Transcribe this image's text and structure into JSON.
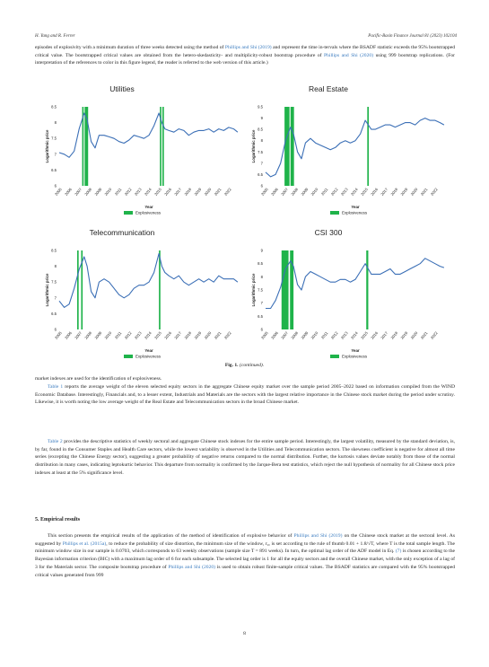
{
  "header": {
    "left": "H. Yang and R. Ferrer",
    "right": "Pacific-Basin Finance Journal 81 (2023) 102104"
  },
  "intro": {
    "t1": "episodes of explosivity with a minimum duration of three weeks detected using the method of ",
    "l1": "Phillips and Shi (2019)",
    "t2": " and represent the time in-tervals where the BSADF statistic exceeds the 95% bootstrapped critical value. The bootstrapped critical values are obtained from the hetero-skedasticity- and multiplicity-robust bootstrap procedure of ",
    "l2": "Phillips and Shi (2020)",
    "t3": " using 999 bootstrap replications. (For interpretation of the references to color in this figure legend, the reader is referred to the web version of this article.)"
  },
  "common": {
    "ylabel": "Logarithmic price",
    "xlabel": "Year",
    "legend": "Explosiveness",
    "years": [
      "2005",
      "2006",
      "2007",
      "2008",
      "2009",
      "2010",
      "2011",
      "2012",
      "2013",
      "2014",
      "2015",
      "2016",
      "2017",
      "2018",
      "2019",
      "2020",
      "2021",
      "2022"
    ],
    "line_color": "#3b6fb6",
    "explosive_color": "#1fb34a"
  },
  "chart_data": [
    {
      "type": "line",
      "title": "Utilities",
      "xlabel": "Year",
      "ylabel": "Logarithmic price",
      "yticks": [
        "6",
        "6.5",
        "7",
        "7.5",
        "8",
        "8.5"
      ],
      "ylim": [
        6,
        8.5
      ],
      "xlim": [
        2005,
        2023
      ],
      "x": [
        2005,
        2005.5,
        2006,
        2006.5,
        2007,
        2007.5,
        2007.8,
        2008.2,
        2008.6,
        2009,
        2009.5,
        2010,
        2010.5,
        2011,
        2011.5,
        2012,
        2012.5,
        2013,
        2013.5,
        2014,
        2014.5,
        2015,
        2015.3,
        2015.6,
        2016,
        2016.5,
        2017,
        2017.5,
        2018,
        2018.5,
        2019,
        2019.5,
        2020,
        2020.5,
        2021,
        2021.5,
        2022,
        2022.5,
        2022.9
      ],
      "y": [
        7.05,
        7.0,
        6.9,
        7.1,
        7.8,
        8.3,
        8.1,
        7.4,
        7.2,
        7.6,
        7.6,
        7.55,
        7.5,
        7.4,
        7.35,
        7.45,
        7.6,
        7.55,
        7.5,
        7.6,
        7.9,
        8.3,
        8.0,
        7.8,
        7.75,
        7.7,
        7.8,
        7.75,
        7.6,
        7.7,
        7.75,
        7.75,
        7.8,
        7.7,
        7.8,
        7.75,
        7.85,
        7.8,
        7.7
      ],
      "explosive_periods": [
        [
          2007.3,
          2007.45
        ],
        [
          2007.55,
          2007.9
        ],
        [
          2015.1,
          2015.25
        ],
        [
          2015.35,
          2015.5
        ]
      ]
    },
    {
      "type": "line",
      "title": "Real Estate",
      "xlabel": "Year",
      "ylabel": "Logarithmic price",
      "yticks": [
        "6",
        "6.5",
        "7",
        "7.5",
        "8",
        "8.5",
        "9",
        "9.5"
      ],
      "ylim": [
        6,
        9.5
      ],
      "xlim": [
        2005,
        2023
      ],
      "x": [
        2005,
        2005.5,
        2006,
        2006.5,
        2007,
        2007.5,
        2007.8,
        2008.2,
        2008.6,
        2009,
        2009.5,
        2010,
        2010.5,
        2011,
        2011.5,
        2012,
        2012.5,
        2013,
        2013.5,
        2014,
        2014.5,
        2015,
        2015.3,
        2015.6,
        2016,
        2016.5,
        2017,
        2017.5,
        2018,
        2018.5,
        2019,
        2019.5,
        2020,
        2020.5,
        2021,
        2021.5,
        2022,
        2022.5,
        2022.9
      ],
      "y": [
        6.6,
        6.4,
        6.5,
        7.0,
        8.0,
        8.6,
        8.3,
        7.5,
        7.2,
        7.9,
        8.1,
        7.9,
        7.8,
        7.7,
        7.6,
        7.7,
        7.9,
        8.0,
        7.9,
        8.0,
        8.3,
        8.9,
        8.7,
        8.5,
        8.5,
        8.6,
        8.7,
        8.7,
        8.6,
        8.7,
        8.8,
        8.8,
        8.7,
        8.9,
        9.0,
        8.9,
        8.9,
        8.8,
        8.7
      ],
      "explosive_periods": [
        [
          2006.9,
          2007.4
        ],
        [
          2007.5,
          2007.85
        ],
        [
          2015.2,
          2015.35
        ]
      ]
    },
    {
      "type": "line",
      "title": "Telecommunication",
      "xlabel": "Year",
      "ylabel": "Logarithmic price",
      "yticks": [
        "6",
        "6.5",
        "7",
        "7.5",
        "8",
        "8.5"
      ],
      "ylim": [
        6,
        8.5
      ],
      "xlim": [
        2005,
        2023
      ],
      "x": [
        2005,
        2005.5,
        2006,
        2006.5,
        2007,
        2007.5,
        2007.8,
        2008.2,
        2008.6,
        2009,
        2009.5,
        2010,
        2010.5,
        2011,
        2011.5,
        2012,
        2012.5,
        2013,
        2013.5,
        2014,
        2014.5,
        2015,
        2015.3,
        2015.6,
        2016,
        2016.5,
        2017,
        2017.5,
        2018,
        2018.5,
        2019,
        2019.5,
        2020,
        2020.5,
        2021,
        2021.5,
        2022,
        2022.5,
        2022.9
      ],
      "y": [
        6.9,
        6.7,
        6.8,
        7.3,
        7.9,
        8.3,
        8.0,
        7.2,
        7.0,
        7.5,
        7.6,
        7.5,
        7.3,
        7.1,
        7.0,
        7.1,
        7.3,
        7.4,
        7.4,
        7.5,
        7.8,
        8.4,
        8.0,
        7.8,
        7.7,
        7.6,
        7.7,
        7.5,
        7.4,
        7.5,
        7.6,
        7.5,
        7.6,
        7.5,
        7.7,
        7.6,
        7.6,
        7.6,
        7.5
      ],
      "explosive_periods": [
        [
          2006.8,
          2006.95
        ],
        [
          2007.2,
          2007.35
        ],
        [
          2015.0,
          2015.15
        ]
      ]
    },
    {
      "type": "line",
      "title": "CSI 300",
      "xlabel": "Year",
      "ylabel": "Logarithmic price",
      "yticks": [
        "6",
        "6.5",
        "7",
        "7.5",
        "8",
        "8.5",
        "9"
      ],
      "ylim": [
        6,
        9
      ],
      "xlim": [
        2005,
        2023
      ],
      "x": [
        2005,
        2005.5,
        2006,
        2006.5,
        2007,
        2007.5,
        2007.8,
        2008.2,
        2008.6,
        2009,
        2009.5,
        2010,
        2010.5,
        2011,
        2011.5,
        2012,
        2012.5,
        2013,
        2013.5,
        2014,
        2014.5,
        2015,
        2015.3,
        2015.6,
        2016,
        2016.5,
        2017,
        2017.5,
        2018,
        2018.5,
        2019,
        2019.5,
        2020,
        2020.5,
        2021,
        2021.5,
        2022,
        2022.5,
        2022.9
      ],
      "y": [
        6.8,
        6.8,
        7.1,
        7.6,
        8.3,
        8.6,
        8.4,
        7.7,
        7.5,
        8.0,
        8.2,
        8.1,
        8.0,
        7.9,
        7.8,
        7.8,
        7.9,
        7.9,
        7.8,
        7.9,
        8.2,
        8.5,
        8.3,
        8.1,
        8.1,
        8.1,
        8.2,
        8.3,
        8.1,
        8.1,
        8.2,
        8.3,
        8.4,
        8.5,
        8.7,
        8.6,
        8.5,
        8.4,
        8.35
      ],
      "explosive_periods": [
        [
          2006.6,
          2007.3
        ],
        [
          2007.45,
          2007.8
        ],
        [
          2015.1,
          2015.3
        ]
      ]
    }
  ],
  "figure": {
    "caption_label": "Fig. 1.",
    "caption_text": "(continued)."
  },
  "body": {
    "p1": "market indexes are used for the identification of explosiveness.",
    "p2_link": "Table 1",
    "p2": " reports the average weight of the eleven selected equity sectors in the aggregate Chinese equity market over the sample period 2005–2022 based on information compiled from the WIND Economic Database. Interestingly, Financials and, to a lesser extent, Industrials and Materials are the sectors with the largest relative importance in the Chinese stock market during the period under scrutiny. Likewise, it is worth noting the low average weight of the Real Estate and Telecommunication sectors in the broad Chinese market.",
    "p3_link": "Table 2",
    "p3": " provides the descriptive statistics of weekly sectoral and aggregate Chinese stock indexes for the entire sample period. Interestingly, the largest volatility, measured by the standard deviation, is, by far, found in the Consumer Staples and Health Care sectors, while the lowest variability is observed in the Utilities and Telecommunication sectors. The skewness coefficient is negative for almost all time series (excepting the Chinese Energy sector), suggesting a greater probability of negative returns compared to the normal distribution. Further, the kurtosis values deviate notably from those of the normal distribution in many cases, indicating leptokurtic behavior. This departure from normality is confirmed by the Jarque-Bera test statistics, which reject the null hypothesis of normality for all Chinese stock price indexes at least at the 5% significance level.",
    "section_title": "5.  Empirical results",
    "p4a": "This section presents the empirical results of the application of the method of identification of explosive behavior of ",
    "p4_l1": "Phillips and Shi (2019)",
    "p4b": " on the Chinese stock market at the sectoral level. As suggested by ",
    "p4_l2": "Phillips et al. (2015a)",
    "p4c": ", to reduce the probability of size distortion, the minimum size of the window, r₀, is set according to the rule of thumb 0.01 + 1.8/√T, where T is the total sample length. The minimum window size in our sample is 0.0703, which corresponds to 63 weekly observations (sample size T = 891 weeks). In turn, the optimal lag order of the ADF model in Eq. ",
    "p4_l3": "(7)",
    "p4d": " is chosen according to the Bayesian information criterion (BIC) with a maximum lag order of 6 for each subsample. The selected lag order is 1 for all the equity sectors and the overall Chinese market, with the only exception of a lag of 3 for the Materials sector. The composite bootstrap procedure of ",
    "p4_l4": "Phillips and Shi (2020)",
    "p4e": " is used to obtain robust finite-sample critical values. The BSADF statistics are compared with the 95% bootstrapped critical values generated from 999"
  },
  "page_number": "8"
}
